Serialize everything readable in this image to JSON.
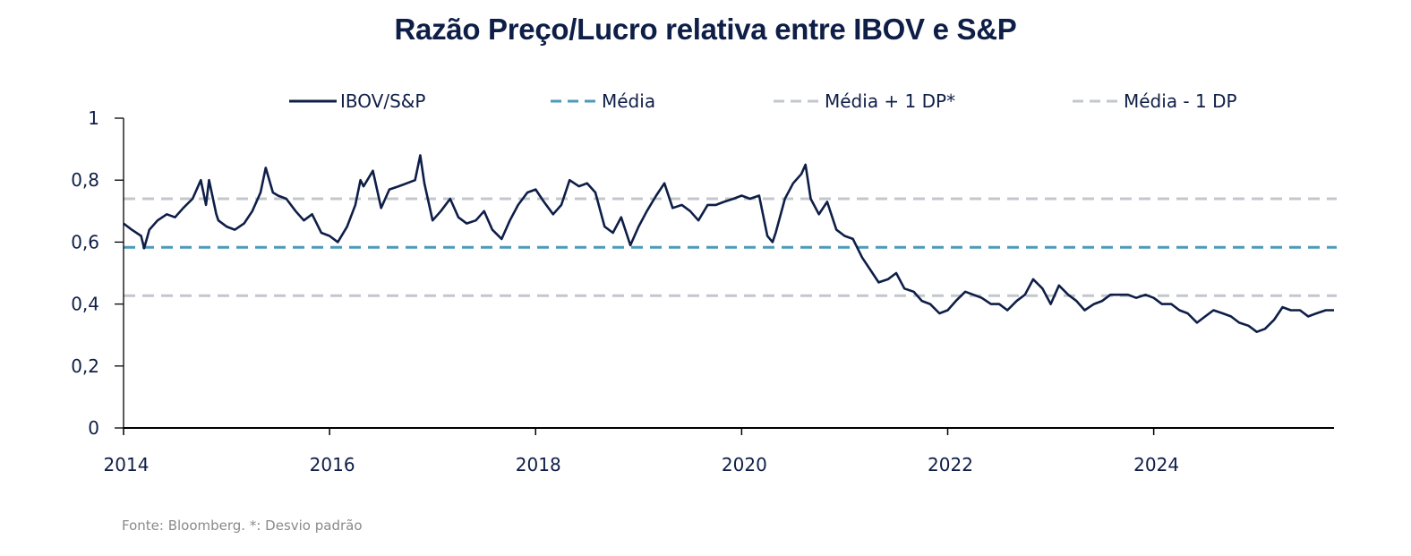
{
  "chart_data": {
    "type": "line",
    "title": "Razão Preço/Lucro relativa entre IBOV e S&P",
    "xlabel": "",
    "ylabel": "",
    "xlim": [
      2014,
      2025.75
    ],
    "ylim": [
      0,
      1
    ],
    "grid": false,
    "legend_position": "top",
    "x_ticks": [
      2014,
      2016,
      2018,
      2020,
      2022,
      2024
    ],
    "x_tick_labels": [
      "2014",
      "2016",
      "2018",
      "2020",
      "2022",
      "2024"
    ],
    "y_ticks": [
      0,
      0.2,
      0.4,
      0.6,
      0.8,
      1
    ],
    "y_tick_labels": [
      "0",
      "0,2",
      "0,4",
      "0,6",
      "0,8",
      "1"
    ],
    "series": [
      {
        "name": "IBOV/S&P",
        "style": "solid",
        "color": "#0e1e47",
        "x": [
          2014.0,
          2014.08,
          2014.17,
          2014.2,
          2014.25,
          2014.33,
          2014.42,
          2014.5,
          2014.58,
          2014.67,
          2014.75,
          2014.8,
          2014.83,
          2014.9,
          2014.92,
          2015.0,
          2015.08,
          2015.17,
          2015.25,
          2015.33,
          2015.38,
          2015.45,
          2015.5,
          2015.58,
          2015.67,
          2015.75,
          2015.83,
          2015.92,
          2016.0,
          2016.08,
          2016.17,
          2016.25,
          2016.3,
          2016.33,
          2016.42,
          2016.5,
          2016.58,
          2016.67,
          2016.75,
          2016.83,
          2016.88,
          2016.92,
          2017.0,
          2017.08,
          2017.17,
          2017.25,
          2017.33,
          2017.42,
          2017.5,
          2017.58,
          2017.67,
          2017.75,
          2017.83,
          2017.92,
          2018.0,
          2018.08,
          2018.17,
          2018.25,
          2018.33,
          2018.42,
          2018.5,
          2018.58,
          2018.67,
          2018.75,
          2018.83,
          2018.92,
          2019.0,
          2019.08,
          2019.17,
          2019.25,
          2019.33,
          2019.42,
          2019.5,
          2019.58,
          2019.67,
          2019.75,
          2019.83,
          2019.92,
          2020.0,
          2020.08,
          2020.17,
          2020.25,
          2020.3,
          2020.33,
          2020.42,
          2020.5,
          2020.58,
          2020.62,
          2020.67,
          2020.75,
          2020.83,
          2020.92,
          2021.0,
          2021.08,
          2021.17,
          2021.25,
          2021.33,
          2021.42,
          2021.5,
          2021.58,
          2021.67,
          2021.75,
          2021.83,
          2021.92,
          2022.0,
          2022.08,
          2022.17,
          2022.25,
          2022.33,
          2022.42,
          2022.5,
          2022.58,
          2022.67,
          2022.75,
          2022.83,
          2022.92,
          2023.0,
          2023.08,
          2023.17,
          2023.25,
          2023.33,
          2023.42,
          2023.5,
          2023.58,
          2023.67,
          2023.75,
          2023.83,
          2023.92,
          2024.0,
          2024.08,
          2024.17,
          2024.25,
          2024.33,
          2024.42,
          2024.5,
          2024.58,
          2024.67,
          2024.75,
          2024.83,
          2024.92,
          2025.0,
          2025.08,
          2025.17,
          2025.25,
          2025.33,
          2025.42,
          2025.5,
          2025.58,
          2025.67,
          2025.75
        ],
        "values": [
          0.66,
          0.64,
          0.62,
          0.58,
          0.64,
          0.67,
          0.69,
          0.68,
          0.71,
          0.74,
          0.8,
          0.72,
          0.8,
          0.69,
          0.67,
          0.65,
          0.64,
          0.66,
          0.7,
          0.76,
          0.84,
          0.76,
          0.75,
          0.74,
          0.7,
          0.67,
          0.69,
          0.63,
          0.62,
          0.6,
          0.65,
          0.72,
          0.8,
          0.78,
          0.83,
          0.71,
          0.77,
          0.78,
          0.79,
          0.8,
          0.88,
          0.79,
          0.67,
          0.7,
          0.74,
          0.68,
          0.66,
          0.67,
          0.7,
          0.64,
          0.61,
          0.67,
          0.72,
          0.76,
          0.77,
          0.73,
          0.69,
          0.72,
          0.8,
          0.78,
          0.79,
          0.76,
          0.65,
          0.63,
          0.68,
          0.59,
          0.65,
          0.7,
          0.75,
          0.79,
          0.71,
          0.72,
          0.7,
          0.67,
          0.72,
          0.72,
          0.73,
          0.74,
          0.75,
          0.74,
          0.75,
          0.62,
          0.6,
          0.63,
          0.74,
          0.79,
          0.82,
          0.85,
          0.74,
          0.69,
          0.73,
          0.64,
          0.62,
          0.61,
          0.55,
          0.51,
          0.47,
          0.48,
          0.5,
          0.45,
          0.44,
          0.41,
          0.4,
          0.37,
          0.38,
          0.41,
          0.44,
          0.43,
          0.42,
          0.4,
          0.4,
          0.38,
          0.41,
          0.43,
          0.48,
          0.45,
          0.4,
          0.46,
          0.43,
          0.41,
          0.38,
          0.4,
          0.41,
          0.43,
          0.43,
          0.43,
          0.42,
          0.43,
          0.42,
          0.4,
          0.4,
          0.38,
          0.37,
          0.34,
          0.36,
          0.38,
          0.37,
          0.36,
          0.34,
          0.33,
          0.31,
          0.32,
          0.35,
          0.39,
          0.38,
          0.38,
          0.36,
          0.37,
          0.38,
          0.38
        ]
      },
      {
        "name": "Média",
        "style": "dashed",
        "color": "#4a9ab8",
        "constant": 0.583
      },
      {
        "name": "Média + 1 DP*",
        "style": "dashed",
        "color": "#c3c7cc",
        "constant": 0.74
      },
      {
        "name": "Média - 1 DP",
        "style": "dashed",
        "color": "#c3c7cc",
        "constant": 0.427
      }
    ],
    "source_note": "Fonte: Bloomberg. *: Desvio padrão"
  }
}
